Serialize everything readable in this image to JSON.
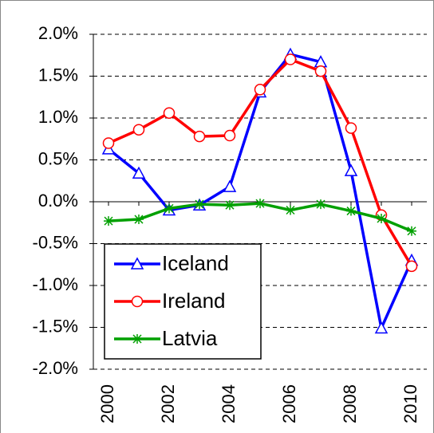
{
  "chart_data": {
    "type": "line",
    "x": [
      2000,
      2001,
      2002,
      2003,
      2004,
      2005,
      2006,
      2007,
      2008,
      2009,
      2010
    ],
    "series": [
      {
        "name": "Iceland",
        "color": "#0000ff",
        "marker": "triangle",
        "values": [
          0.63,
          0.34,
          -0.1,
          -0.04,
          0.18,
          1.31,
          1.76,
          1.67,
          0.37,
          -1.51,
          -0.7
        ]
      },
      {
        "name": "Ireland",
        "color": "#ff0000",
        "marker": "circle",
        "values": [
          0.7,
          0.86,
          1.06,
          0.78,
          0.79,
          1.34,
          1.7,
          1.56,
          0.88,
          -0.16,
          -0.77
        ]
      },
      {
        "name": "Latvia",
        "color": "#00a000",
        "marker": "asterisk",
        "values": [
          -0.23,
          -0.21,
          -0.08,
          -0.03,
          -0.04,
          -0.02,
          -0.1,
          -0.03,
          -0.11,
          -0.2,
          -0.35
        ]
      }
    ],
    "xlim": [
      1999.5,
      2010.5
    ],
    "xticks": [
      2000,
      2002,
      2004,
      2006,
      2008,
      2010
    ],
    "ylim": [
      -2,
      2
    ],
    "yticks": [
      {
        "value": -2,
        "label": "-2.0%"
      },
      {
        "value": -1.5,
        "label": "-1.5%"
      },
      {
        "value": -1,
        "label": "-1.0%"
      },
      {
        "value": -0.5,
        "label": "-0.5%"
      },
      {
        "value": 0,
        "label": "0.0%"
      },
      {
        "value": 0.5,
        "label": "0.5%"
      },
      {
        "value": 1,
        "label": "1.0%"
      },
      {
        "value": 1.5,
        "label": "1.5%"
      },
      {
        "value": 2,
        "label": "2.0%"
      }
    ],
    "grid": true,
    "legend": "lower-left"
  }
}
